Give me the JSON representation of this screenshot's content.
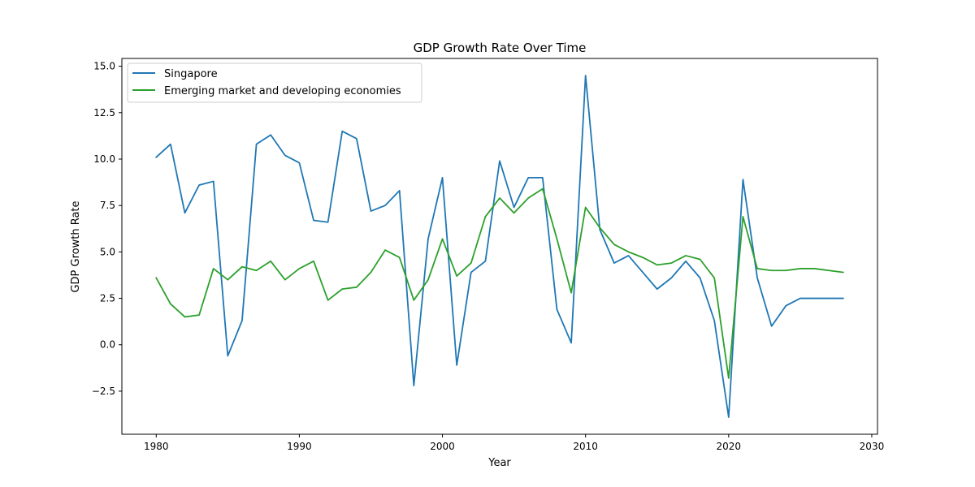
{
  "chart_data": {
    "type": "line",
    "title": "GDP Growth Rate Over Time",
    "xlabel": "Year",
    "ylabel": "GDP Growth Rate",
    "xlim": [
      1977.6,
      2030.4
    ],
    "ylim": [
      -4.82,
      15.42
    ],
    "xticks": [
      1980,
      1990,
      2000,
      2010,
      2020,
      2030
    ],
    "yticks": [
      -2.5,
      0.0,
      2.5,
      5.0,
      7.5,
      10.0,
      12.5,
      15.0
    ],
    "ytick_labels": [
      "−2.5",
      "0.0",
      "2.5",
      "5.0",
      "7.5",
      "10.0",
      "12.5",
      "15.0"
    ],
    "grid": false,
    "legend_position": "top-left",
    "x": [
      1980,
      1981,
      1982,
      1983,
      1984,
      1985,
      1986,
      1987,
      1988,
      1989,
      1990,
      1991,
      1992,
      1993,
      1994,
      1995,
      1996,
      1997,
      1998,
      1999,
      2000,
      2001,
      2002,
      2003,
      2004,
      2005,
      2006,
      2007,
      2008,
      2009,
      2010,
      2011,
      2012,
      2013,
      2014,
      2015,
      2016,
      2017,
      2018,
      2019,
      2020,
      2021,
      2022,
      2023,
      2024,
      2025,
      2026,
      2027,
      2028
    ],
    "series": [
      {
        "name": "Singapore",
        "color": "#1f77b4",
        "values": [
          10.1,
          10.8,
          7.1,
          8.6,
          8.8,
          -0.6,
          1.3,
          10.8,
          11.3,
          10.2,
          9.8,
          6.7,
          6.6,
          11.5,
          11.1,
          7.2,
          7.5,
          8.3,
          -2.2,
          5.7,
          9.0,
          -1.1,
          3.9,
          4.5,
          9.9,
          7.4,
          9.0,
          9.0,
          1.9,
          0.1,
          14.5,
          6.2,
          4.4,
          4.8,
          3.9,
          3.0,
          3.6,
          4.5,
          3.6,
          1.3,
          -3.9,
          8.9,
          3.6,
          1.0,
          2.1,
          2.5,
          2.5,
          2.5,
          2.5
        ]
      },
      {
        "name": "Emerging market and developing economies",
        "color": "#2ca02c",
        "values": [
          3.6,
          2.2,
          1.5,
          1.6,
          4.1,
          3.5,
          4.2,
          4.0,
          4.5,
          3.5,
          4.1,
          4.5,
          2.4,
          3.0,
          3.1,
          3.9,
          5.1,
          4.7,
          2.4,
          3.5,
          5.7,
          3.7,
          4.4,
          6.9,
          7.9,
          7.1,
          7.9,
          8.4,
          5.7,
          2.8,
          7.4,
          6.3,
          5.4,
          5.0,
          4.7,
          4.3,
          4.4,
          4.8,
          4.6,
          3.6,
          -1.8,
          6.9,
          4.1,
          4.0,
          4.0,
          4.1,
          4.1,
          4.0,
          3.9
        ]
      }
    ]
  }
}
